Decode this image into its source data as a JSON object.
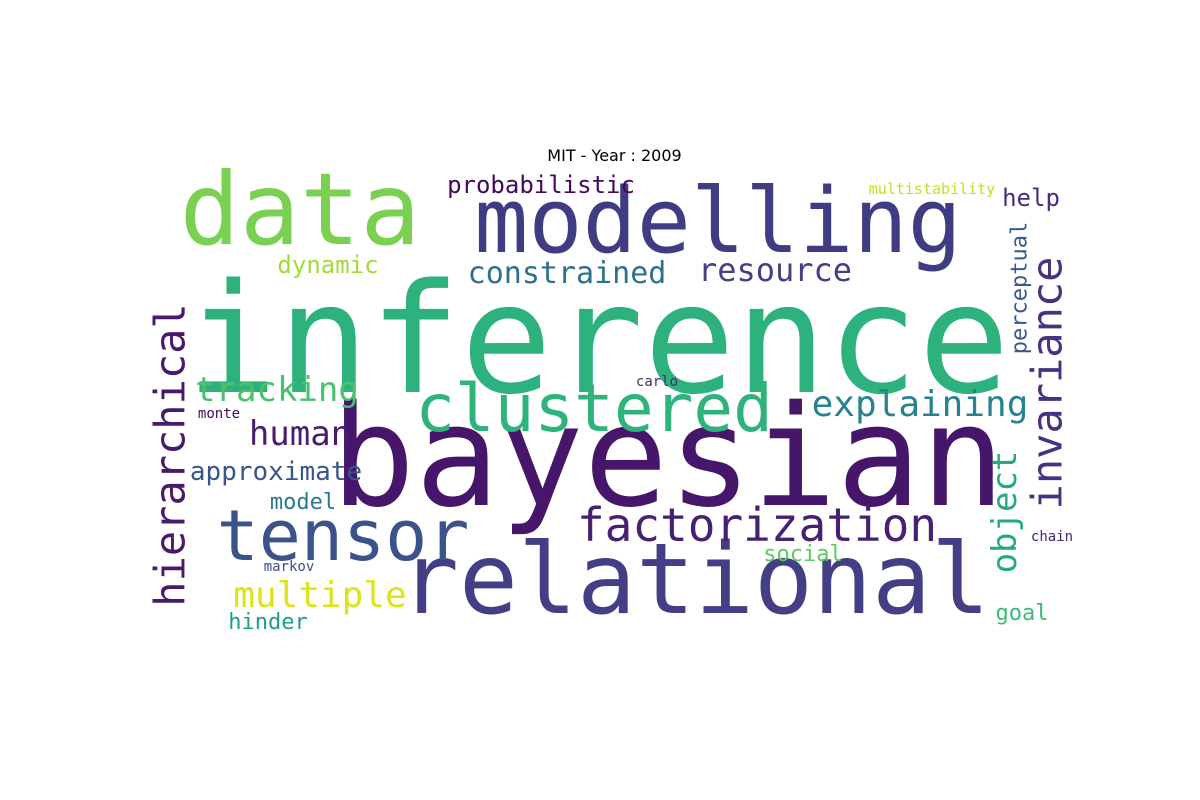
{
  "title": "MIT - Year : 2009",
  "words": [
    {
      "text": "inference",
      "color": "#2db27d"
    },
    {
      "text": "bayesian",
      "color": "#46166b"
    },
    {
      "text": "relational",
      "color": "#433e85"
    },
    {
      "text": "modelling",
      "color": "#3f3c83"
    },
    {
      "text": "data",
      "color": "#7ad151"
    },
    {
      "text": "tensor",
      "color": "#3b528b"
    },
    {
      "text": "clustered",
      "color": "#2eb37c"
    },
    {
      "text": "factorization",
      "color": "#482071"
    },
    {
      "text": "hierarchical",
      "color": "#481a6c"
    },
    {
      "text": "invariance",
      "color": "#46327e"
    },
    {
      "text": "object",
      "color": "#24aa83"
    },
    {
      "text": "explaining",
      "color": "#26828e"
    },
    {
      "text": "multiple",
      "color": "#dde318"
    },
    {
      "text": "resource",
      "color": "#424086"
    },
    {
      "text": "constrained",
      "color": "#2c718e"
    },
    {
      "text": "tracking",
      "color": "#4ac16d"
    },
    {
      "text": "human",
      "color": "#481c6e"
    },
    {
      "text": "approximate",
      "color": "#39558c"
    },
    {
      "text": "probabilistic",
      "color": "#46085c"
    },
    {
      "text": "dynamic",
      "color": "#a2da37"
    },
    {
      "text": "help",
      "color": "#472d7b"
    },
    {
      "text": "perceptual",
      "color": "#38598c"
    },
    {
      "text": "model",
      "color": "#2a788e"
    },
    {
      "text": "hinder",
      "color": "#1f9e89"
    },
    {
      "text": "social",
      "color": "#5ec962"
    },
    {
      "text": "goal",
      "color": "#3bbb75"
    },
    {
      "text": "multistability",
      "color": "#c2df23"
    },
    {
      "text": "monte",
      "color": "#46075a"
    },
    {
      "text": "carlo",
      "color": "#472a7a"
    },
    {
      "text": "markov",
      "color": "#3e4c8a"
    },
    {
      "text": "chain",
      "color": "#482475"
    }
  ]
}
